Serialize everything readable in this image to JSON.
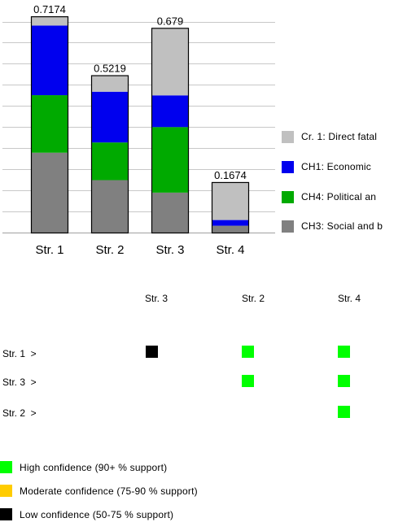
{
  "chart_data": {
    "type": "bar",
    "stacked": true,
    "categories": [
      "Str. 1",
      "Str. 2",
      "Str. 3",
      "Str. 4"
    ],
    "totals": [
      "0.7174",
      "0.5219",
      "0.679",
      "0.1674"
    ],
    "ylim": [
      0,
      0.75
    ],
    "grid": true,
    "legend_position": "right",
    "series": [
      {
        "name": "CH3: Social and b",
        "color": "#808080",
        "values": [
          0.265,
          0.174,
          0.1325,
          0.0227
        ]
      },
      {
        "name": "CH4: Political an",
        "color": "#00aa00",
        "values": [
          0.1908,
          0.1249,
          0.2175,
          0.0
        ]
      },
      {
        "name": "CH1: Economic",
        "color": "#0000ee",
        "values": [
          0.2309,
          0.1684,
          0.1052,
          0.0189
        ]
      },
      {
        "name": "Cr. 1: Direct fatal",
        "color": "#c0c0c0",
        "values": [
          0.0307,
          0.0546,
          0.2238,
          0.1258
        ]
      }
    ]
  },
  "legend": [
    {
      "label": "Cr. 1: Direct fatal",
      "color": "#c0c0c0"
    },
    {
      "label": "CH1: Economic",
      "color": "#0000ee"
    },
    {
      "label": "CH4: Political an",
      "color": "#00aa00"
    },
    {
      "label": "CH3: Social and b",
      "color": "#808080"
    }
  ],
  "matrix": {
    "columns": [
      "Str. 3",
      "Str. 2",
      "Str. 4"
    ],
    "rows": [
      {
        "label": "Str. 1  >",
        "cells": [
          "low",
          "high",
          "high"
        ]
      },
      {
        "label": "Str. 3  >",
        "cells": [
          "",
          "high",
          "high"
        ]
      },
      {
        "label": "Str. 2  >",
        "cells": [
          "",
          "",
          "high"
        ]
      }
    ]
  },
  "confidence_legend": [
    {
      "key": "high",
      "label": "High confidence (90+ % support)",
      "color": "#00ff00"
    },
    {
      "key": "moderate",
      "label": "Moderate confidence (75-90 % support)",
      "color": "#ffcc00"
    },
    {
      "key": "low",
      "label": "Low confidence (50-75 % support)",
      "color": "#000000"
    }
  ]
}
